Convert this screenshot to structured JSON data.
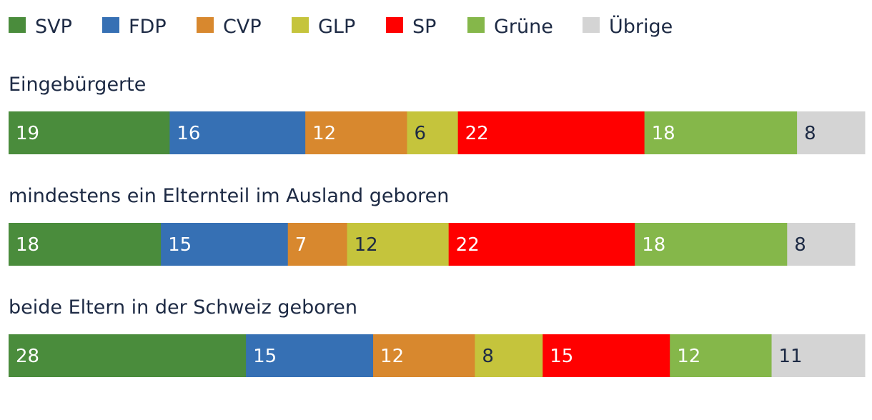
{
  "chart_data": {
    "type": "bar",
    "orientation": "horizontal",
    "stacked": true,
    "title": "",
    "xlabel": "",
    "ylabel": "",
    "legend_position": "top",
    "grid": false,
    "series": [
      {
        "name": "SVP",
        "color": "#4a8c3c"
      },
      {
        "name": "FDP",
        "color": "#3670b4"
      },
      {
        "name": "CVP",
        "color": "#d8882e"
      },
      {
        "name": "GLP",
        "color": "#c5c43c"
      },
      {
        "name": "SP",
        "color": "#ff0000"
      },
      {
        "name": "Grüne",
        "color": "#85b74a"
      },
      {
        "name": "Übrige",
        "color": "#d4d4d4"
      }
    ],
    "categories": [
      "Eingebürgerte",
      "mindestens ein Elternteil im Ausland geboren",
      "beide Eltern in der Schweiz geboren"
    ],
    "values": [
      [
        19,
        16,
        12,
        6,
        22,
        18,
        8
      ],
      [
        18,
        15,
        7,
        12,
        22,
        18,
        8
      ],
      [
        28,
        15,
        12,
        8,
        15,
        12,
        11
      ]
    ],
    "label_colors": {
      "on_dark": "#ffffff",
      "on_light": "#1d2a44"
    }
  }
}
